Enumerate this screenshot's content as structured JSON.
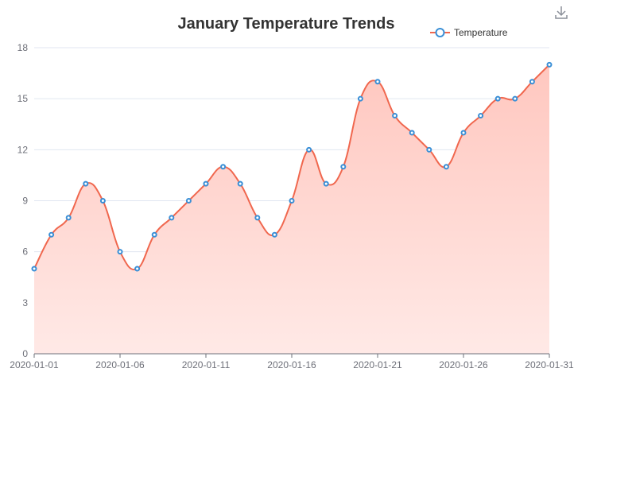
{
  "chart_data": {
    "type": "area",
    "title": "January Temperature Trends",
    "xlabel": "",
    "ylabel": "",
    "ylim": [
      0,
      18
    ],
    "yticks": [
      0,
      3,
      6,
      9,
      12,
      15,
      18
    ],
    "x": [
      "2020-01-01",
      "2020-01-02",
      "2020-01-03",
      "2020-01-04",
      "2020-01-05",
      "2020-01-06",
      "2020-01-07",
      "2020-01-08",
      "2020-01-09",
      "2020-01-10",
      "2020-01-11",
      "2020-01-12",
      "2020-01-13",
      "2020-01-14",
      "2020-01-15",
      "2020-01-16",
      "2020-01-17",
      "2020-01-18",
      "2020-01-19",
      "2020-01-20",
      "2020-01-21",
      "2020-01-22",
      "2020-01-23",
      "2020-01-24",
      "2020-01-25",
      "2020-01-26",
      "2020-01-27",
      "2020-01-28",
      "2020-01-29",
      "2020-01-30",
      "2020-01-31"
    ],
    "xtick_labels": [
      "2020-01-01",
      "2020-01-06",
      "2020-01-11",
      "2020-01-16",
      "2020-01-21",
      "2020-01-26",
      "2020-01-31"
    ],
    "series": [
      {
        "name": "Temperature",
        "values": [
          5,
          7,
          8,
          10,
          9,
          6,
          5,
          7,
          8,
          9,
          10,
          11,
          10,
          8,
          7,
          9,
          12,
          10,
          11,
          15,
          16,
          14,
          13,
          12,
          11,
          13,
          14,
          15,
          15,
          16,
          17
        ]
      }
    ],
    "grid": true,
    "smooth": true,
    "legend_position": "top-right",
    "colors": {
      "line": "#f0674e",
      "area_top": "#ffc7bf",
      "area_bottom": "#ffe9e6",
      "point_stroke": "#3a8fd6",
      "point_fill": "#ffffff",
      "grid": "#e0e6f1",
      "axis": "#6e7079",
      "title": "#333333"
    }
  },
  "toolbar": {
    "download_icon": "download-icon"
  }
}
